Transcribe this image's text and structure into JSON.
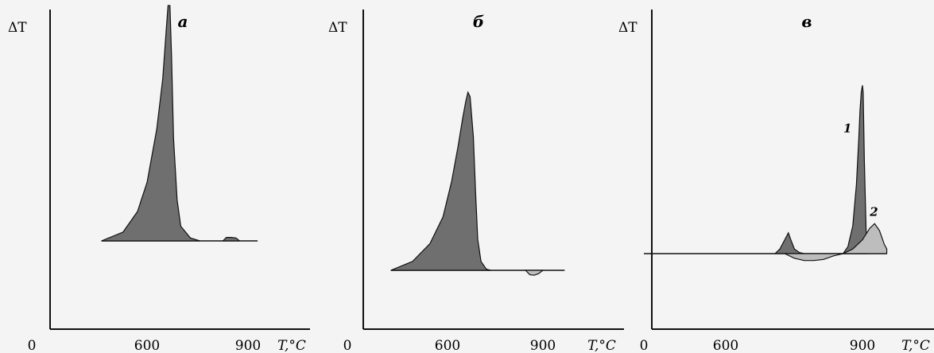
{
  "colors": {
    "background": "#f4f4f4",
    "axis": "#111111",
    "dark_fill": "#6f6f6f",
    "light_fill": "#bdbdbd"
  },
  "chart_data": [
    {
      "panel_label": "а",
      "type": "area",
      "ylabel": "ΔT",
      "xlabel": "T,°C",
      "x_ticks": [
        "0",
        "600",
        "900"
      ],
      "x_tick_values": [
        0,
        600,
        900
      ],
      "xlim": [
        0,
        1000
      ],
      "ylim": [
        0,
        1
      ],
      "grid": false,
      "series": [
        {
          "fill": "dark",
          "x": [
            290,
            380,
            440,
            480,
            520,
            545,
            560,
            567,
            575,
            582,
            590,
            605,
            620,
            660,
            700
          ],
          "y": [
            0,
            0.03,
            0.1,
            0.2,
            0.38,
            0.55,
            0.72,
            0.8,
            0.8,
            0.62,
            0.35,
            0.14,
            0.05,
            0.01,
            0
          ]
        },
        {
          "fill": "dark",
          "x": [
            795,
            810,
            830,
            850,
            865
          ],
          "y": [
            0,
            0.012,
            0.012,
            0.01,
            0
          ]
        }
      ],
      "baseline": {
        "x": [
          290,
          940
        ],
        "y": [
          0,
          0
        ]
      }
    },
    {
      "panel_label": "б",
      "type": "area",
      "ylabel": "ΔT",
      "xlabel": "T,°C",
      "x_ticks": [
        "0",
        "600",
        "900"
      ],
      "x_tick_values": [
        0,
        600,
        900
      ],
      "xlim": [
        0,
        1000
      ],
      "ylim": [
        0,
        1
      ],
      "grid": false,
      "series": [
        {
          "fill": "dark",
          "x": [
            200,
            300,
            380,
            440,
            480,
            510,
            530,
            545,
            555,
            565,
            580,
            590,
            600,
            615,
            640,
            660
          ],
          "y": [
            0,
            0.04,
            0.12,
            0.24,
            0.4,
            0.56,
            0.68,
            0.76,
            0.8,
            0.78,
            0.6,
            0.35,
            0.14,
            0.04,
            0.005,
            0
          ]
        },
        {
          "fill": "light",
          "x": [
            820,
            840,
            860,
            880,
            900
          ],
          "y": [
            0,
            -0.02,
            -0.022,
            -0.015,
            0
          ]
        }
      ],
      "baseline": {
        "x": [
          200,
          1000
        ],
        "y": [
          0,
          0
        ]
      }
    },
    {
      "panel_label": "в",
      "type": "area",
      "ylabel": "ΔT",
      "xlabel": "T,°C",
      "x_ticks": [
        "0",
        "600",
        "900"
      ],
      "x_tick_values": [
        0,
        600,
        900
      ],
      "xlim": [
        0,
        1000
      ],
      "ylim": [
        0,
        1
      ],
      "grid": false,
      "series": [
        {
          "name": "1",
          "fill": "dark",
          "x": [
            820,
            840,
            860,
            875,
            885,
            890,
            895,
            900,
            903,
            908,
            915,
            925
          ],
          "y": [
            0,
            0.03,
            0.12,
            0.3,
            0.5,
            0.62,
            0.7,
            0.73,
            0.7,
            0.4,
            0.1,
            0
          ],
          "extra_peak": {
            "x": [
              540,
              560,
              580,
              595,
              605,
              620,
              640,
              660
            ],
            "y": [
              0,
              0.02,
              0.06,
              0.09,
              0.06,
              0.02,
              0.005,
              0
            ]
          }
        },
        {
          "name": "2",
          "fill": "light",
          "x": [
            580,
            620,
            660,
            700,
            740,
            780,
            820,
            860,
            900,
            930,
            950,
            970,
            990,
            1000
          ],
          "y": [
            0,
            -0.02,
            -0.03,
            -0.03,
            -0.025,
            -0.01,
            0,
            0.02,
            0.06,
            0.11,
            0.13,
            0.1,
            0.04,
            0.02
          ]
        }
      ],
      "baseline": {
        "x": [
          0,
          1000
        ],
        "y": [
          0,
          0
        ]
      }
    }
  ]
}
